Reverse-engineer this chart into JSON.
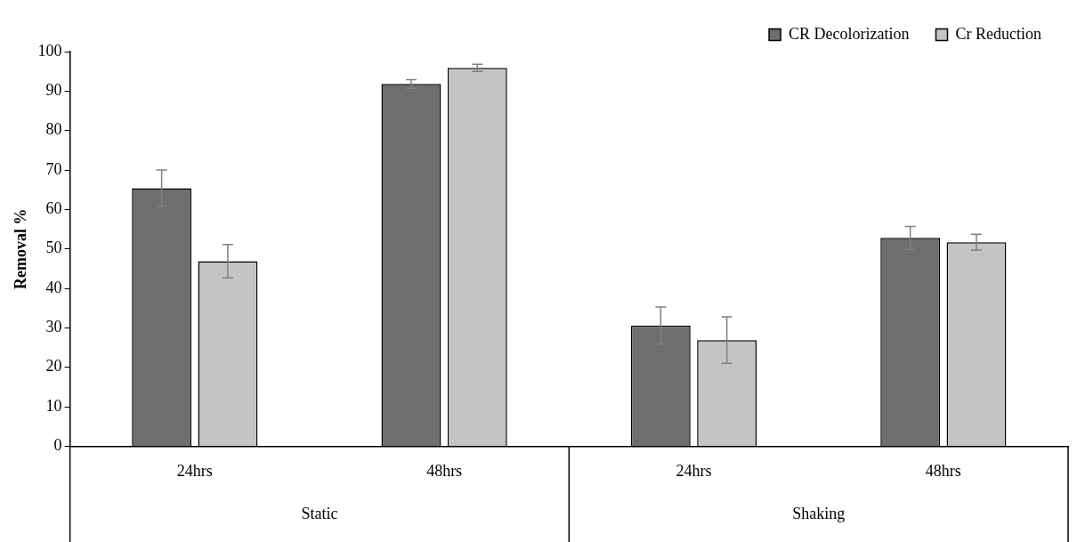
{
  "chart_data": {
    "type": "bar",
    "ylabel": "Removal %",
    "categories": [
      "24hrs",
      "48hrs",
      "24hrs",
      "48hrs"
    ],
    "annotations": [
      "Static",
      "Shaking"
    ],
    "series": [
      {
        "name": "CR Decolorization",
        "color": "#6e6e6e",
        "values": [
          65.4,
          91.8,
          30.6,
          52.8
        ],
        "errors": [
          4.6,
          1.1,
          4.7,
          2.9
        ]
      },
      {
        "name": "Cr Reduction",
        "color": "#c4c4c4",
        "values": [
          46.9,
          95.9,
          26.9,
          51.7
        ],
        "errors": [
          4.2,
          0.9,
          5.9,
          2.0
        ]
      }
    ],
    "ylim": [
      0,
      100
    ],
    "yticks": [
      0,
      10,
      20,
      30,
      40,
      50,
      60,
      70,
      80,
      90,
      100
    ],
    "grid": false,
    "legend": "top right"
  }
}
